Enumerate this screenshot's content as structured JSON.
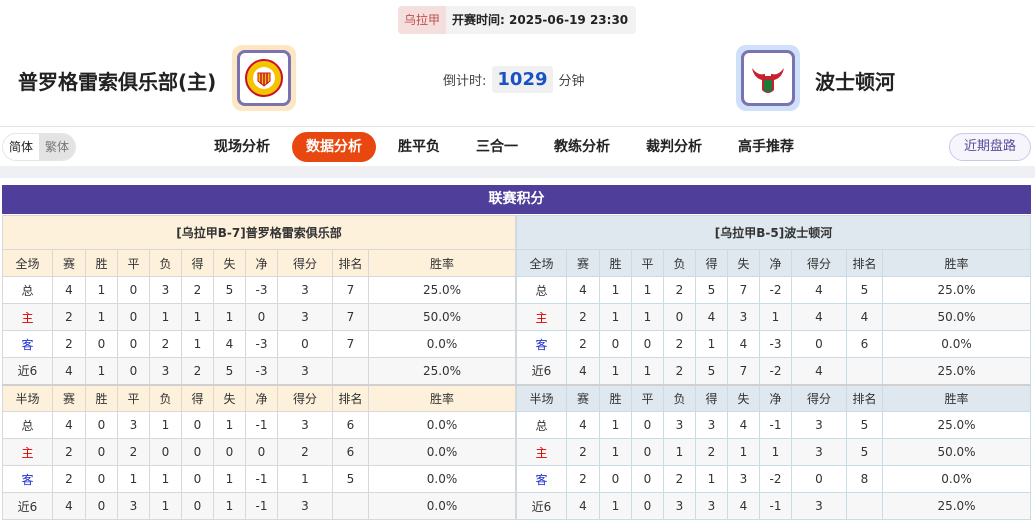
{
  "match": {
    "league": "乌拉甲",
    "start_label": "开赛时间:",
    "start_time": "2025-06-19 23:30",
    "countdown_label": "倒计时:",
    "countdown_value": "1029",
    "countdown_unit": "分钟"
  },
  "home": {
    "name": "普罗格雷索俱乐部(主)"
  },
  "away": {
    "name": "波士顿河"
  },
  "lang": {
    "simplified": "简体",
    "traditional": "繁体"
  },
  "tabs": [
    {
      "label": "现场分析"
    },
    {
      "label": "数据分析",
      "active": true
    },
    {
      "label": "胜平负"
    },
    {
      "label": "三合一"
    },
    {
      "label": "教练分析"
    },
    {
      "label": "裁判分析"
    },
    {
      "label": "高手推荐"
    }
  ],
  "recent_button": "近期盘路",
  "section_title": "联赛积分",
  "colors": {
    "accent": "#e8470f",
    "title_bar": "#4f3f9b",
    "home_red": "#e00000",
    "away_blue": "#1f2fd0"
  },
  "standings": {
    "headers_full": [
      "全场",
      "赛",
      "胜",
      "平",
      "负",
      "得",
      "失",
      "净",
      "得分",
      "排名",
      "胜率"
    ],
    "headers_half": [
      "半场",
      "赛",
      "胜",
      "平",
      "负",
      "得",
      "失",
      "净",
      "得分",
      "排名",
      "胜率"
    ],
    "home": {
      "title": "[乌拉甲B-7]普罗格雷索俱乐部",
      "full": [
        [
          "总",
          "4",
          "1",
          "0",
          "3",
          "2",
          "5",
          "-3",
          "3",
          "7",
          "25.0%"
        ],
        [
          "主",
          "2",
          "1",
          "0",
          "1",
          "1",
          "1",
          "0",
          "3",
          "7",
          "50.0%"
        ],
        [
          "客",
          "2",
          "0",
          "0",
          "2",
          "1",
          "4",
          "-3",
          "0",
          "7",
          "0.0%"
        ],
        [
          "近6",
          "4",
          "1",
          "0",
          "3",
          "2",
          "5",
          "-3",
          "3",
          "",
          "25.0%"
        ]
      ],
      "half": [
        [
          "总",
          "4",
          "0",
          "3",
          "1",
          "0",
          "1",
          "-1",
          "3",
          "6",
          "0.0%"
        ],
        [
          "主",
          "2",
          "0",
          "2",
          "0",
          "0",
          "0",
          "0",
          "2",
          "6",
          "0.0%"
        ],
        [
          "客",
          "2",
          "0",
          "1",
          "1",
          "0",
          "1",
          "-1",
          "1",
          "5",
          "0.0%"
        ],
        [
          "近6",
          "4",
          "0",
          "3",
          "1",
          "0",
          "1",
          "-1",
          "3",
          "",
          "0.0%"
        ]
      ]
    },
    "away": {
      "title": "[乌拉甲B-5]波士顿河",
      "full": [
        [
          "总",
          "4",
          "1",
          "1",
          "2",
          "5",
          "7",
          "-2",
          "4",
          "5",
          "25.0%"
        ],
        [
          "主",
          "2",
          "1",
          "1",
          "0",
          "4",
          "3",
          "1",
          "4",
          "4",
          "50.0%"
        ],
        [
          "客",
          "2",
          "0",
          "0",
          "2",
          "1",
          "4",
          "-3",
          "0",
          "6",
          "0.0%"
        ],
        [
          "近6",
          "4",
          "1",
          "1",
          "2",
          "5",
          "7",
          "-2",
          "4",
          "",
          "25.0%"
        ]
      ],
      "half": [
        [
          "总",
          "4",
          "1",
          "0",
          "3",
          "3",
          "4",
          "-1",
          "3",
          "5",
          "25.0%"
        ],
        [
          "主",
          "2",
          "1",
          "0",
          "1",
          "2",
          "1",
          "1",
          "3",
          "5",
          "50.0%"
        ],
        [
          "客",
          "2",
          "0",
          "0",
          "2",
          "1",
          "3",
          "-2",
          "0",
          "8",
          "0.0%"
        ],
        [
          "近6",
          "4",
          "1",
          "0",
          "3",
          "3",
          "4",
          "-1",
          "3",
          "",
          "25.0%"
        ]
      ]
    }
  }
}
